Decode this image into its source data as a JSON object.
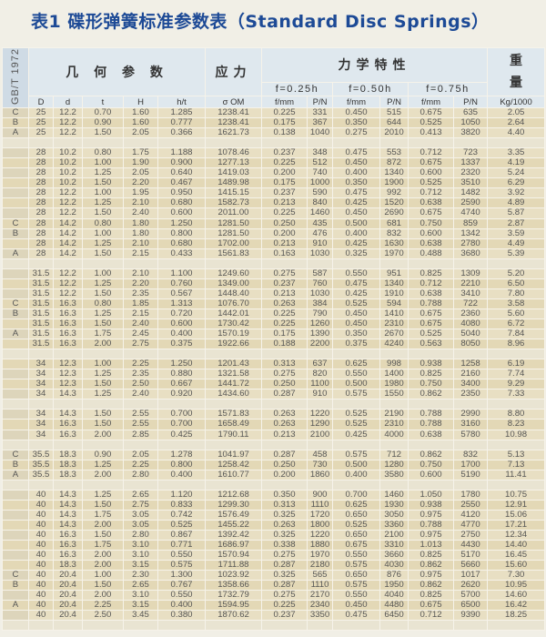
{
  "title": "表1  碟形弹簧标准参数表（Standard Disc Springs）",
  "header": {
    "standard": "GB/T 1972",
    "geometry": "几 何 参 数",
    "stress": "应力",
    "mechanical": "力学特性",
    "weight": [
      "重",
      "量"
    ],
    "deflections": [
      "f=0.25h",
      "f=0.50h",
      "f=0.75h"
    ],
    "columns": [
      "D",
      "d",
      "t",
      "H",
      "h/t",
      "σ OM",
      "f/mm",
      "P/N",
      "f/mm",
      "P/N",
      "f/mm",
      "P/N",
      "Kg/1000"
    ]
  },
  "groups": [
    [
      [
        "C",
        "25",
        "12.2",
        "0.70",
        "1.60",
        "1.285",
        "1238.41",
        "0.225",
        "331",
        "0.450",
        "515",
        "0.675",
        "635",
        "2.05"
      ],
      [
        "B",
        "25",
        "12.2",
        "0.90",
        "1.60",
        "0.777",
        "1238.41",
        "0.175",
        "367",
        "0.350",
        "644",
        "0.525",
        "1050",
        "2.64"
      ],
      [
        "A",
        "25",
        "12.2",
        "1.50",
        "2.05",
        "0.366",
        "1621.73",
        "0.138",
        "1040",
        "0.275",
        "2010",
        "0.413",
        "3820",
        "4.40"
      ]
    ],
    [
      [
        "",
        "28",
        "10.2",
        "0.80",
        "1.75",
        "1.188",
        "1078.46",
        "0.237",
        "348",
        "0.475",
        "553",
        "0.712",
        "723",
        "3.35"
      ],
      [
        "",
        "28",
        "10.2",
        "1.00",
        "1.90",
        "0.900",
        "1277.13",
        "0.225",
        "512",
        "0.450",
        "872",
        "0.675",
        "1337",
        "4.19"
      ],
      [
        "",
        "28",
        "10.2",
        "1.25",
        "2.05",
        "0.640",
        "1419.03",
        "0.200",
        "740",
        "0.400",
        "1340",
        "0.600",
        "2320",
        "5.24"
      ],
      [
        "",
        "28",
        "10.2",
        "1.50",
        "2.20",
        "0.467",
        "1489.98",
        "0.175",
        "1000",
        "0.350",
        "1900",
        "0.525",
        "3510",
        "6.29"
      ],
      [
        "",
        "28",
        "12.2",
        "1.00",
        "1.95",
        "0.950",
        "1415.15",
        "0.237",
        "590",
        "0.475",
        "992",
        "0.712",
        "1482",
        "3.92"
      ],
      [
        "",
        "28",
        "12.2",
        "1.25",
        "2.10",
        "0.680",
        "1582.73",
        "0.213",
        "840",
        "0.425",
        "1520",
        "0.638",
        "2590",
        "4.89"
      ],
      [
        "",
        "28",
        "12.2",
        "1.50",
        "2.40",
        "0.600",
        "2011.00",
        "0.225",
        "1460",
        "0.450",
        "2690",
        "0.675",
        "4740",
        "5.87"
      ],
      [
        "C",
        "28",
        "14.2",
        "0.80",
        "1.80",
        "1.250",
        "1281.50",
        "0.250",
        "435",
        "0.500",
        "681",
        "0.750",
        "859",
        "2.87"
      ],
      [
        "B",
        "28",
        "14.2",
        "1.00",
        "1.80",
        "0.800",
        "1281.50",
        "0.200",
        "476",
        "0.400",
        "832",
        "0.600",
        "1342",
        "3.59"
      ],
      [
        "",
        "28",
        "14.2",
        "1.25",
        "2.10",
        "0.680",
        "1702.00",
        "0.213",
        "910",
        "0.425",
        "1630",
        "0.638",
        "2780",
        "4.49"
      ],
      [
        "A",
        "28",
        "14.2",
        "1.50",
        "2.15",
        "0.433",
        "1561.83",
        "0.163",
        "1030",
        "0.325",
        "1970",
        "0.488",
        "3680",
        "5.39"
      ]
    ],
    [
      [
        "",
        "31.5",
        "12.2",
        "1.00",
        "2.10",
        "1.100",
        "1249.60",
        "0.275",
        "587",
        "0.550",
        "951",
        "0.825",
        "1309",
        "5.20"
      ],
      [
        "",
        "31.5",
        "12.2",
        "1.25",
        "2.20",
        "0.760",
        "1349.00",
        "0.237",
        "760",
        "0.475",
        "1340",
        "0.712",
        "2210",
        "6.50"
      ],
      [
        "",
        "31.5",
        "12.2",
        "1.50",
        "2.35",
        "0.567",
        "1448.40",
        "0.213",
        "1030",
        "0.425",
        "1910",
        "0.638",
        "3410",
        "7.80"
      ],
      [
        "C",
        "31.5",
        "16.3",
        "0.80",
        "1.85",
        "1.313",
        "1076.70",
        "0.263",
        "384",
        "0.525",
        "594",
        "0.788",
        "722",
        "3.58"
      ],
      [
        "B",
        "31.5",
        "16.3",
        "1.25",
        "2.15",
        "0.720",
        "1442.01",
        "0.225",
        "790",
        "0.450",
        "1410",
        "0.675",
        "2360",
        "5.60"
      ],
      [
        "",
        "31.5",
        "16.3",
        "1.50",
        "2.40",
        "0.600",
        "1730.42",
        "0.225",
        "1260",
        "0.450",
        "2310",
        "0.675",
        "4080",
        "6.72"
      ],
      [
        "A",
        "31.5",
        "16.3",
        "1.75",
        "2.45",
        "0.400",
        "1570.19",
        "0.175",
        "1390",
        "0.350",
        "2670",
        "0.525",
        "5040",
        "7.84"
      ],
      [
        "",
        "31.5",
        "16.3",
        "2.00",
        "2.75",
        "0.375",
        "1922.66",
        "0.188",
        "2200",
        "0.375",
        "4240",
        "0.563",
        "8050",
        "8.96"
      ]
    ],
    [
      [
        "",
        "34",
        "12.3",
        "1.00",
        "2.25",
        "1.250",
        "1201.43",
        "0.313",
        "637",
        "0.625",
        "998",
        "0.938",
        "1258",
        "6.19"
      ],
      [
        "",
        "34",
        "12.3",
        "1.25",
        "2.35",
        "0.880",
        "1321.58",
        "0.275",
        "820",
        "0.550",
        "1400",
        "0.825",
        "2160",
        "7.74"
      ],
      [
        "",
        "34",
        "12.3",
        "1.50",
        "2.50",
        "0.667",
        "1441.72",
        "0.250",
        "1100",
        "0.500",
        "1980",
        "0.750",
        "3400",
        "9.29"
      ],
      [
        "",
        "34",
        "14.3",
        "1.25",
        "2.40",
        "0.920",
        "1434.60",
        "0.287",
        "910",
        "0.575",
        "1550",
        "0.862",
        "2350",
        "7.33"
      ]
    ],
    [
      [
        "",
        "34",
        "14.3",
        "1.50",
        "2.55",
        "0.700",
        "1571.83",
        "0.263",
        "1220",
        "0.525",
        "2190",
        "0.788",
        "2990",
        "8.80"
      ],
      [
        "",
        "34",
        "16.3",
        "1.50",
        "2.55",
        "0.700",
        "1658.49",
        "0.263",
        "1290",
        "0.525",
        "2310",
        "0.788",
        "3160",
        "8.23"
      ],
      [
        "",
        "34",
        "16.3",
        "2.00",
        "2.85",
        "0.425",
        "1790.11",
        "0.213",
        "2100",
        "0.425",
        "4000",
        "0.638",
        "5780",
        "10.98"
      ]
    ],
    [
      [
        "C",
        "35.5",
        "18.3",
        "0.90",
        "2.05",
        "1.278",
        "1041.97",
        "0.287",
        "458",
        "0.575",
        "712",
        "0.862",
        "832",
        "5.13"
      ],
      [
        "B",
        "35.5",
        "18.3",
        "1.25",
        "2.25",
        "0.800",
        "1258.42",
        "0.250",
        "730",
        "0.500",
        "1280",
        "0.750",
        "1700",
        "7.13"
      ],
      [
        "A",
        "35.5",
        "18.3",
        "2.00",
        "2.80",
        "0.400",
        "1610.77",
        "0.200",
        "1860",
        "0.400",
        "3580",
        "0.600",
        "5190",
        "11.41"
      ]
    ],
    [
      [
        "",
        "40",
        "14.3",
        "1.25",
        "2.65",
        "1.120",
        "1212.68",
        "0.350",
        "900",
        "0.700",
        "1460",
        "1.050",
        "1780",
        "10.75"
      ],
      [
        "",
        "40",
        "14.3",
        "1.50",
        "2.75",
        "0.833",
        "1299.30",
        "0.313",
        "1110",
        "0.625",
        "1930",
        "0.938",
        "2550",
        "12.91"
      ],
      [
        "",
        "40",
        "14.3",
        "1.75",
        "3.05",
        "0.742",
        "1576.49",
        "0.325",
        "1720",
        "0.650",
        "3050",
        "0.975",
        "4120",
        "15.06"
      ],
      [
        "",
        "40",
        "14.3",
        "2.00",
        "3.05",
        "0.525",
        "1455.22",
        "0.263",
        "1800",
        "0.525",
        "3360",
        "0.788",
        "4770",
        "17.21"
      ],
      [
        "",
        "40",
        "16.3",
        "1.50",
        "2.80",
        "0.867",
        "1392.42",
        "0.325",
        "1220",
        "0.650",
        "2100",
        "0.975",
        "2750",
        "12.34"
      ],
      [
        "",
        "40",
        "16.3",
        "1.75",
        "3.10",
        "0.771",
        "1686.97",
        "0.338",
        "1880",
        "0.675",
        "3310",
        "1.013",
        "4430",
        "14.40"
      ],
      [
        "",
        "40",
        "16.3",
        "2.00",
        "3.10",
        "0.550",
        "1570.94",
        "0.275",
        "1970",
        "0.550",
        "3660",
        "0.825",
        "5170",
        "16.45"
      ],
      [
        "",
        "40",
        "18.3",
        "2.00",
        "3.15",
        "0.575",
        "1711.88",
        "0.287",
        "2180",
        "0.575",
        "4030",
        "0.862",
        "5660",
        "15.60"
      ],
      [
        "C",
        "40",
        "20.4",
        "1.00",
        "2.30",
        "1.300",
        "1023.92",
        "0.325",
        "565",
        "0.650",
        "876",
        "0.975",
        "1017",
        "7.30"
      ],
      [
        "B",
        "40",
        "20.4",
        "1.50",
        "2.65",
        "0.767",
        "1358.66",
        "0.287",
        "1110",
        "0.575",
        "1950",
        "0.862",
        "2620",
        "10.95"
      ],
      [
        "",
        "40",
        "20.4",
        "2.00",
        "3.10",
        "0.550",
        "1732.79",
        "0.275",
        "2170",
        "0.550",
        "4040",
        "0.825",
        "5700",
        "14.60"
      ],
      [
        "A",
        "40",
        "20.4",
        "2.25",
        "3.15",
        "0.400",
        "1594.95",
        "0.225",
        "2340",
        "0.450",
        "4480",
        "0.675",
        "6500",
        "16.42"
      ],
      [
        "",
        "40",
        "20.4",
        "2.50",
        "3.45",
        "0.380",
        "1870.62",
        "0.237",
        "3350",
        "0.475",
        "6450",
        "0.712",
        "9390",
        "18.25"
      ]
    ]
  ]
}
